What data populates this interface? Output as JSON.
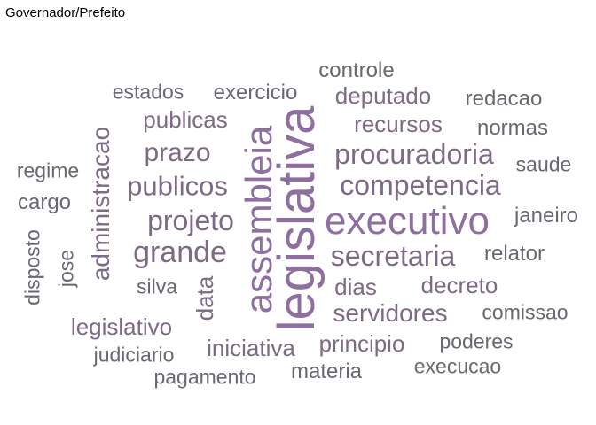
{
  "title": "Governador/Prefeito",
  "colors": {
    "purple": "#8e6fa0",
    "mid": "#7c6a86",
    "gray": "#6a6770"
  },
  "words": [
    {
      "text": "legislativa",
      "color": "purple",
      "rotate": -90
    },
    {
      "text": "assembleia",
      "color": "purple",
      "rotate": -90
    },
    {
      "text": "executivo",
      "color": "purple",
      "rotate": 0
    },
    {
      "text": "competencia",
      "color": "mid",
      "rotate": 0
    },
    {
      "text": "secretaria",
      "color": "mid",
      "rotate": 0
    },
    {
      "text": "procuradoria",
      "color": "mid",
      "rotate": 0
    },
    {
      "text": "grande",
      "color": "mid",
      "rotate": 0
    },
    {
      "text": "projeto",
      "color": "mid",
      "rotate": 0
    },
    {
      "text": "publicos",
      "color": "mid",
      "rotate": 0
    },
    {
      "text": "administracao",
      "color": "mid",
      "rotate": -90
    },
    {
      "text": "prazo",
      "color": "mid",
      "rotate": 0
    },
    {
      "text": "servidores",
      "color": "mid",
      "rotate": 0
    },
    {
      "text": "recursos",
      "color": "mid",
      "rotate": 0
    },
    {
      "text": "deputado",
      "color": "mid",
      "rotate": 0
    },
    {
      "text": "publicas",
      "color": "mid",
      "rotate": 0
    },
    {
      "text": "data",
      "color": "mid",
      "rotate": -90
    },
    {
      "text": "dias",
      "color": "mid",
      "rotate": 0
    },
    {
      "text": "decreto",
      "color": "mid",
      "rotate": 0
    },
    {
      "text": "legislativo",
      "color": "mid",
      "rotate": 0
    },
    {
      "text": "iniciativa",
      "color": "mid",
      "rotate": 0
    },
    {
      "text": "principio",
      "color": "mid",
      "rotate": 0
    },
    {
      "text": "exercicio",
      "color": "gray",
      "rotate": 0
    },
    {
      "text": "relator",
      "color": "gray",
      "rotate": 0
    },
    {
      "text": "janeiro",
      "color": "gray",
      "rotate": 0
    },
    {
      "text": "cargo",
      "color": "gray",
      "rotate": 0
    },
    {
      "text": "normas",
      "color": "gray",
      "rotate": 0
    },
    {
      "text": "redacao",
      "color": "gray",
      "rotate": 0
    },
    {
      "text": "controle",
      "color": "gray",
      "rotate": 0
    },
    {
      "text": "estados",
      "color": "gray",
      "rotate": 0
    },
    {
      "text": "regime",
      "color": "gray",
      "rotate": 0
    },
    {
      "text": "saude",
      "color": "gray",
      "rotate": 0
    },
    {
      "text": "comissao",
      "color": "gray",
      "rotate": 0
    },
    {
      "text": "poderes",
      "color": "gray",
      "rotate": 0
    },
    {
      "text": "materia",
      "color": "gray",
      "rotate": 0
    },
    {
      "text": "execucao",
      "color": "gray",
      "rotate": 0
    },
    {
      "text": "pagamento",
      "color": "gray",
      "rotate": 0
    },
    {
      "text": "judiciario",
      "color": "gray",
      "rotate": 0
    },
    {
      "text": "silva",
      "color": "gray",
      "rotate": 0
    },
    {
      "text": "jose",
      "color": "gray",
      "rotate": -90
    },
    {
      "text": "disposto",
      "color": "gray",
      "rotate": -90
    }
  ]
}
